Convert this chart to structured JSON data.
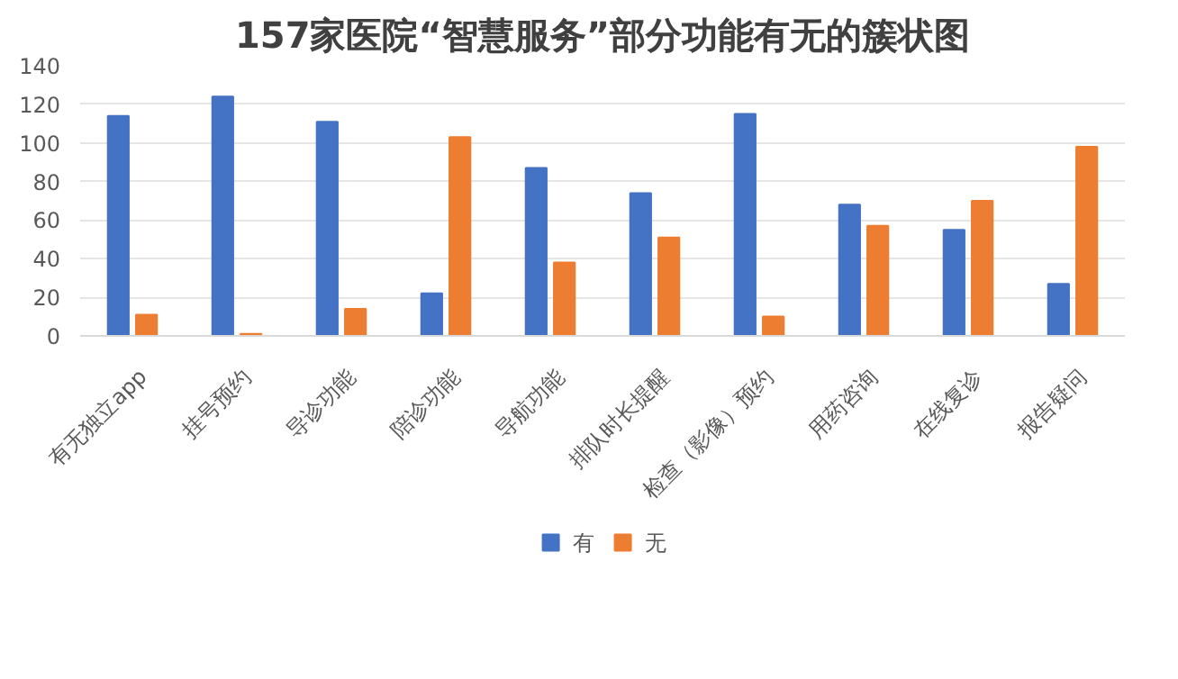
{
  "chart_data": {
    "type": "bar",
    "title": "157家医院“智慧服务”部分功能有无的簇状图",
    "categories": [
      "有无独立app",
      "挂号预约",
      "导诊功能",
      "陪诊功能",
      "导航功能",
      "排队时长提醒",
      "检查（影像）预约",
      "用药咨询",
      "在线复诊",
      "报告疑问"
    ],
    "series": [
      {
        "name": "有",
        "color": "#4472c4",
        "values": [
          114,
          124,
          111,
          22,
          87,
          74,
          115,
          68,
          55,
          27
        ]
      },
      {
        "name": "无",
        "color": "#ed7d31",
        "values": [
          11,
          1,
          14,
          103,
          38,
          51,
          10,
          57,
          70,
          98
        ]
      }
    ],
    "ylim": [
      0,
      140
    ],
    "yticks": [
      0,
      20,
      40,
      60,
      80,
      100,
      120,
      140
    ],
    "grid": "y",
    "legend": "bottom"
  }
}
